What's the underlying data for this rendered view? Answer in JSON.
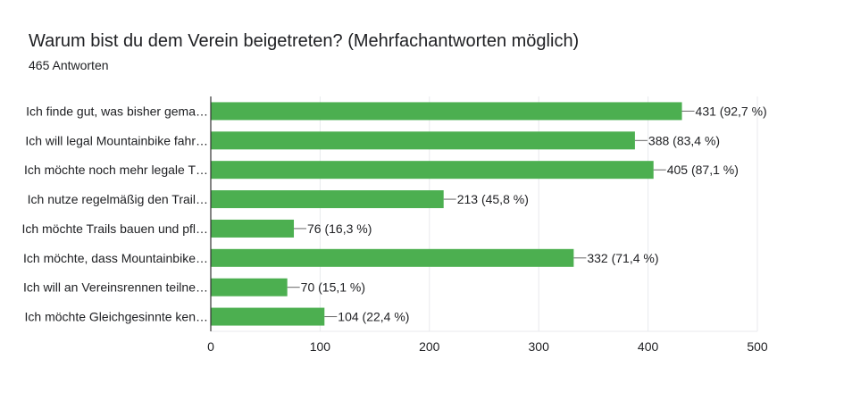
{
  "header": {
    "title": "Warum bist du dem Verein beigetreten? (Mehrfachantworten möglich)",
    "response_count": "465 Antworten"
  },
  "colors": {
    "bar": "#4caf50",
    "grid": "#e8eaed",
    "axis": "#333333",
    "leader": "#666666"
  },
  "chart_data": {
    "type": "bar",
    "orientation": "horizontal",
    "title": "Warum bist du dem Verein beigetreten? (Mehrfachantworten möglich)",
    "subtitle": "465 Antworten",
    "categories": [
      "Ich finde gut, was bisher gema…",
      "Ich will legal Mountainbike fahr…",
      "Ich möchte noch mehr legale T…",
      "Ich nutze regelmäßig den Trail…",
      "Ich möchte Trails bauen und pfl…",
      "Ich möchte, dass Mountainbike…",
      "Ich will an Vereinsrennen teilne…",
      "Ich möchte Gleichgesinnte ken…"
    ],
    "values": [
      431,
      388,
      405,
      213,
      76,
      332,
      70,
      104
    ],
    "data_labels": [
      "431 (92,7 %)",
      "388 (83,4 %)",
      "405 (87,1 %)",
      "213 (45,8 %)",
      "76 (16,3 %)",
      "332 (71,4 %)",
      "70 (15,1 %)",
      "104 (22,4 %)"
    ],
    "xlim": [
      0,
      500
    ],
    "x_ticks": [
      0,
      100,
      200,
      300,
      400,
      500
    ],
    "x_tick_labels": [
      "0",
      "100",
      "200",
      "300",
      "400",
      "500"
    ],
    "grid": true,
    "legend": "none",
    "xlabel": "",
    "ylabel": ""
  }
}
